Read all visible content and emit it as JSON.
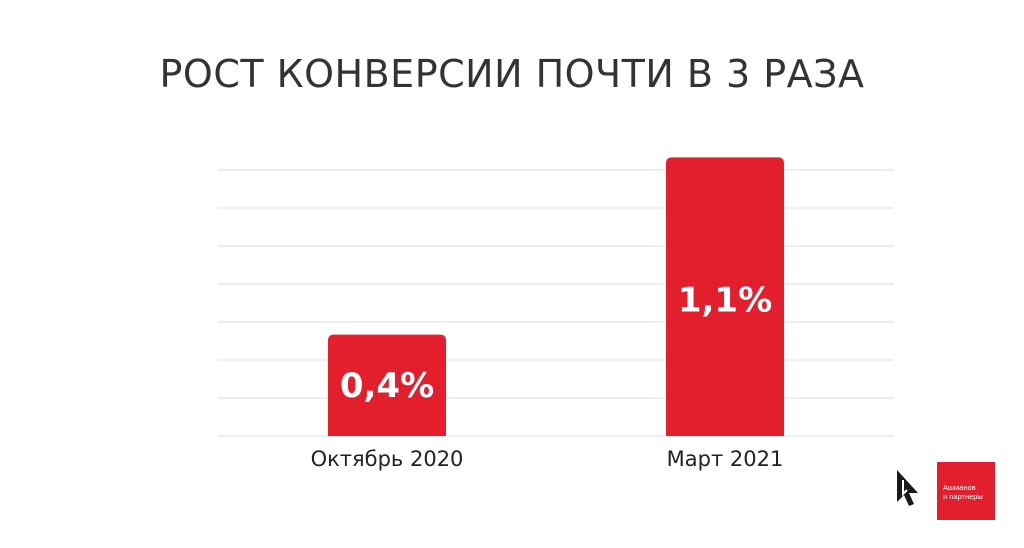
{
  "chart_data": {
    "type": "bar",
    "title": "РОСТ КОНВЕРСИИ ПОЧТИ В 3 РАЗА",
    "categories": [
      "Октябрь 2020",
      "Март 2021"
    ],
    "values": [
      0.4,
      1.1
    ],
    "data_labels": [
      "0,4%",
      "1,1%"
    ],
    "ylim": [
      0,
      1.2
    ],
    "grid": true,
    "color": "#e31e2d"
  },
  "logo": {
    "line1": "Ашманов",
    "line2": "и партнеры",
    "color": "#e31e2d"
  }
}
